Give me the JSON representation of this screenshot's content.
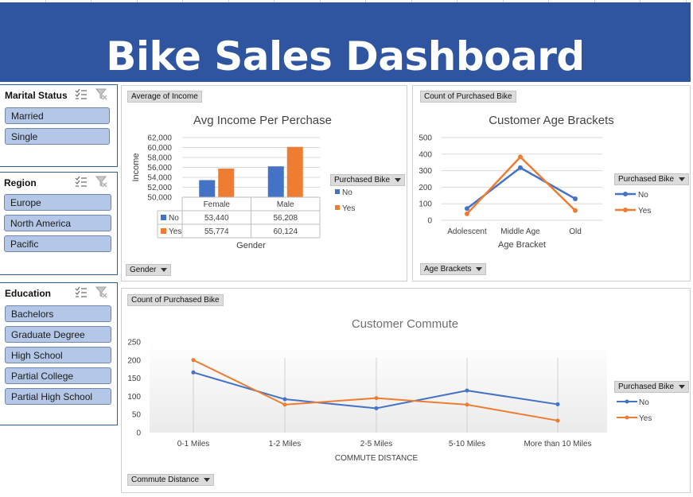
{
  "title": "Bike Sales Dashboard",
  "slicers": {
    "marital": {
      "title": "Marital Status",
      "items": [
        "Married",
        "Single"
      ]
    },
    "region": {
      "title": "Region",
      "items": [
        "Europe",
        "North America",
        "Pacific"
      ]
    },
    "education": {
      "title": "Education",
      "items": [
        "Bachelors",
        "Graduate Degree",
        "High School",
        "Partial College",
        "Partial High School"
      ]
    }
  },
  "colors": {
    "no": "#4472c4",
    "yes": "#ed7d31",
    "banner": "#2f55a0",
    "slicer_item": "#b4c7e7"
  },
  "income_panel": {
    "field_tag": "Average of Income",
    "axis_tag": "Gender",
    "legend_tag": "Purchased Bike"
  },
  "age_panel": {
    "field_tag": "Count of Purchased Bike",
    "axis_tag": "Age Brackets",
    "legend_tag": "Purchased Bike"
  },
  "commute_panel": {
    "field_tag": "Count of Purchased Bike",
    "axis_tag": "Commute Distance",
    "legend_tag": "Purchased Bike"
  },
  "chart_data": [
    {
      "type": "bar",
      "title": "Avg Income Per Perchase",
      "xlabel": "Gender",
      "ylabel": "Income",
      "categories": [
        "Female",
        "Male"
      ],
      "series": [
        {
          "name": "No",
          "values": [
            53440,
            56208
          ],
          "labels": [
            "53,440",
            "56,208"
          ]
        },
        {
          "name": "Yes",
          "values": [
            55774,
            60124
          ],
          "labels": [
            "55,774",
            "60,124"
          ]
        }
      ],
      "ylim": [
        50000,
        62000
      ],
      "yticks": [
        50000,
        52000,
        54000,
        56000,
        58000,
        60000,
        62000
      ],
      "ytick_labels": [
        "50,000",
        "52,000",
        "54,000",
        "56,000",
        "58,000",
        "60,000",
        "62,000"
      ],
      "data_table": true,
      "legend": "right"
    },
    {
      "type": "line",
      "title": "Customer Age Brackets",
      "xlabel": "Age Bracket",
      "ylabel": "",
      "categories": [
        "Adolescent",
        "Middle Age",
        "Old"
      ],
      "series": [
        {
          "name": "No",
          "values": [
            71,
            318,
            130
          ]
        },
        {
          "name": "Yes",
          "values": [
            39,
            383,
            59
          ]
        }
      ],
      "ylim": [
        0,
        500
      ],
      "yticks": [
        0,
        100,
        200,
        300,
        400,
        500
      ],
      "ytick_labels": [
        "0",
        "100",
        "200",
        "300",
        "400",
        "500"
      ],
      "grid": true,
      "legend": "right"
    },
    {
      "type": "line",
      "title": "Customer Commute",
      "xlabel": "COMMUTE DISTANCE",
      "ylabel": "",
      "categories": [
        "0-1 Miles",
        "1-2 Miles",
        "2-5 Miles",
        "5-10 Miles",
        "More than 10 Miles"
      ],
      "series": [
        {
          "name": "No",
          "values": [
            166,
            92,
            67,
            116,
            78
          ]
        },
        {
          "name": "Yes",
          "values": [
            200,
            77,
            95,
            77,
            33
          ]
        }
      ],
      "ylim": [
        0,
        250
      ],
      "yticks": [
        0,
        50,
        100,
        150,
        200,
        250
      ],
      "ytick_labels": [
        "0",
        "50",
        "100",
        "150",
        "200",
        "250"
      ],
      "grid": false,
      "legend": "right"
    }
  ]
}
